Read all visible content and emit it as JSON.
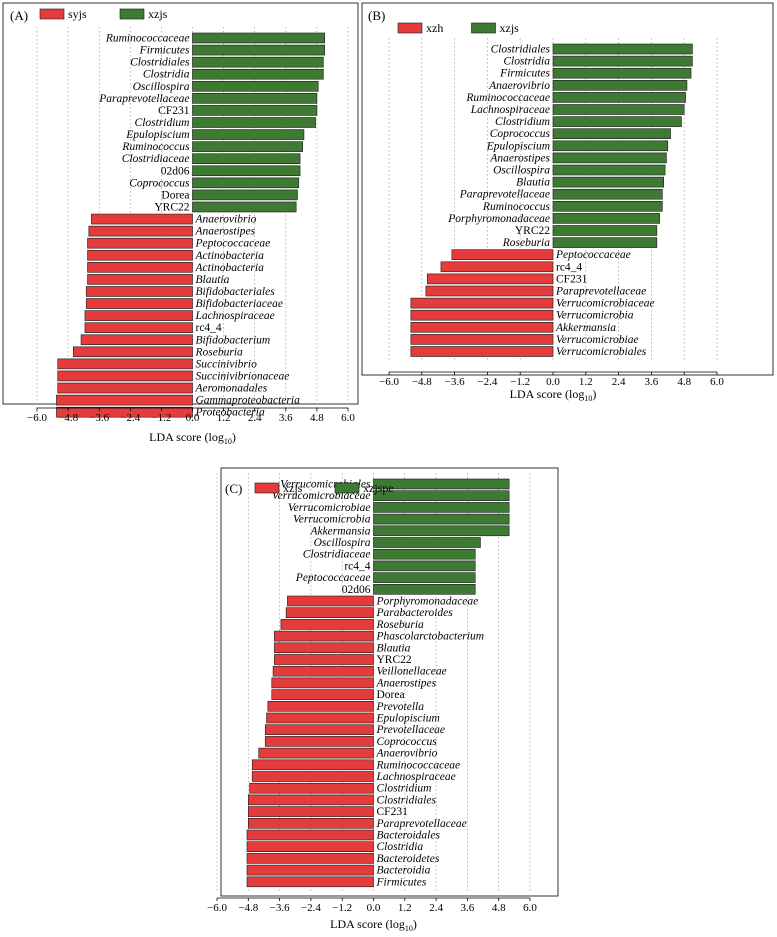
{
  "colors": {
    "negative": "#e43c3c",
    "positive": "#3e7a33",
    "grid": "#999999",
    "axis": "#000000"
  },
  "chart_data": [
    {
      "type": "bar",
      "orientation": "horizontal",
      "panel_label": "(A)",
      "xlabel": "LDA score (log",
      "xlabel_sub": "10",
      "xlabel_end": ")",
      "xlim": [
        -6.0,
        6.0
      ],
      "xticks": [
        -6.0,
        -4.8,
        -3.6,
        -2.4,
        -1.2,
        0.0,
        1.2,
        2.4,
        3.6,
        4.8,
        6.0
      ],
      "xtick_labels": [
        "−6.0",
        "−4.8",
        "−3.6",
        "−2.4",
        "−1.2",
        "0.0",
        "1.2",
        "2.4",
        "3.6",
        "4.8",
        "6.0"
      ],
      "grid": "vertical dotted",
      "legend_position": "top-left",
      "series": [
        {
          "name": "syjs",
          "color": "#e43c3c"
        },
        {
          "name": "xzjs",
          "color": "#3e7a33"
        }
      ],
      "bars": [
        {
          "label": "Ruminococcaceae",
          "value": 5.1,
          "italic": true
        },
        {
          "label": "Firmicutes",
          "value": 5.1,
          "italic": true
        },
        {
          "label": "Clostridiales",
          "value": 5.05,
          "italic": true
        },
        {
          "label": "Clostridia",
          "value": 5.05,
          "italic": true
        },
        {
          "label": "Oscillospira",
          "value": 4.85,
          "italic": true
        },
        {
          "label": "Paraprevotellaceae",
          "value": 4.8,
          "italic": true
        },
        {
          "label": "CF231",
          "value": 4.8,
          "italic": false
        },
        {
          "label": "Clostridium",
          "value": 4.75,
          "italic": true
        },
        {
          "label": "Epulopiscium",
          "value": 4.3,
          "italic": true
        },
        {
          "label": "Ruminococcus",
          "value": 4.25,
          "italic": true
        },
        {
          "label": "Clostridiaceae",
          "value": 4.15,
          "italic": true
        },
        {
          "label": "02d06",
          "value": 4.15,
          "italic": false
        },
        {
          "label": "Coprococcus",
          "value": 4.1,
          "italic": true
        },
        {
          "label": "Dorea",
          "value": 4.05,
          "italic": false
        },
        {
          "label": "YRC22",
          "value": 4.0,
          "italic": false
        },
        {
          "label": "Anaerovibrio",
          "value": -3.9,
          "italic": true
        },
        {
          "label": "Anaerostipes",
          "value": -4.0,
          "italic": true
        },
        {
          "label": "Peptococcaceae",
          "value": -4.05,
          "italic": true
        },
        {
          "label": "Actinobacteria",
          "value": -4.05,
          "italic": true
        },
        {
          "label": "Actinobacteria",
          "value": -4.05,
          "italic": true
        },
        {
          "label": "Blautia",
          "value": -4.05,
          "italic": true
        },
        {
          "label": "Bifidobacteriales",
          "value": -4.1,
          "italic": true
        },
        {
          "label": "Bifidobacteriaceae",
          "value": -4.1,
          "italic": true
        },
        {
          "label": "Lachnospiraceae",
          "value": -4.15,
          "italic": true
        },
        {
          "label": "rc4_4",
          "value": -4.15,
          "italic": false
        },
        {
          "label": "Bifidobacterium",
          "value": -4.3,
          "italic": true
        },
        {
          "label": "Roseburia",
          "value": -4.6,
          "italic": true
        },
        {
          "label": "Succinivibrio",
          "value": -5.2,
          "italic": true
        },
        {
          "label": "Succinivibrionaceae",
          "value": -5.2,
          "italic": true
        },
        {
          "label": "Aeromonadales",
          "value": -5.2,
          "italic": true
        },
        {
          "label": "Gammaproteobacteria",
          "value": -5.25,
          "italic": true
        },
        {
          "label": "Proteobacteria",
          "value": -5.25,
          "italic": true
        }
      ]
    },
    {
      "type": "bar",
      "orientation": "horizontal",
      "panel_label": "(B)",
      "xlabel": "LDA score (log",
      "xlabel_sub": "10",
      "xlabel_end": ")",
      "xlim": [
        -6.0,
        6.0
      ],
      "xticks": [
        -6.0,
        -4.8,
        -3.6,
        -2.4,
        -1.2,
        0.0,
        1.2,
        2.4,
        3.6,
        4.8,
        6.0
      ],
      "xtick_labels": [
        "−6.0",
        "−4.8",
        "−3.6",
        "−2.4",
        "−1.2",
        "0.0",
        "1.2",
        "2.4",
        "3.6",
        "4.8",
        "6.0"
      ],
      "grid": "vertical dotted",
      "legend_position": "top-left",
      "series": [
        {
          "name": "xzh",
          "color": "#e43c3c"
        },
        {
          "name": "xzjs",
          "color": "#3e7a33"
        }
      ],
      "bars": [
        {
          "label": "Clostridiales",
          "value": 5.1,
          "italic": true
        },
        {
          "label": "Clostridia",
          "value": 5.1,
          "italic": true
        },
        {
          "label": "Firmicutes",
          "value": 5.05,
          "italic": true
        },
        {
          "label": "Anaerovibrio",
          "value": 4.9,
          "italic": true
        },
        {
          "label": "Ruminococcaceae",
          "value": 4.85,
          "italic": true
        },
        {
          "label": "Lachnospiraceae",
          "value": 4.8,
          "italic": true
        },
        {
          "label": "Clostridium",
          "value": 4.7,
          "italic": true
        },
        {
          "label": "Coprococcus",
          "value": 4.3,
          "italic": true
        },
        {
          "label": "Epulopiscium",
          "value": 4.2,
          "italic": true
        },
        {
          "label": "Anaerostipes",
          "value": 4.15,
          "italic": true
        },
        {
          "label": "Oscillospira",
          "value": 4.1,
          "italic": true
        },
        {
          "label": "Blautia",
          "value": 4.05,
          "italic": true
        },
        {
          "label": "Paraprevotellaceae",
          "value": 4.0,
          "italic": true
        },
        {
          "label": "Ruminococcus",
          "value": 4.0,
          "italic": true
        },
        {
          "label": "Porphyromonadaceae",
          "value": 3.9,
          "italic": true
        },
        {
          "label": "YRC22",
          "value": 3.8,
          "italic": false
        },
        {
          "label": "Roseburia",
          "value": 3.8,
          "italic": true
        },
        {
          "label": "Peptococcaceae",
          "value": -3.7,
          "italic": true
        },
        {
          "label": "rc4_4",
          "value": -4.1,
          "italic": false
        },
        {
          "label": "CF231",
          "value": -4.6,
          "italic": false
        },
        {
          "label": "Paraprevotellaceae",
          "value": -4.65,
          "italic": true
        },
        {
          "label": "Verrucomicrobiaceae",
          "value": -5.2,
          "italic": true
        },
        {
          "label": "Verrucomicrobia",
          "value": -5.2,
          "italic": true
        },
        {
          "label": "Akkermansia",
          "value": -5.2,
          "italic": true
        },
        {
          "label": "Verrucomicrobiae",
          "value": -5.2,
          "italic": true
        },
        {
          "label": "Verrucomicrobiales",
          "value": -5.2,
          "italic": true
        }
      ]
    },
    {
      "type": "bar",
      "orientation": "horizontal",
      "panel_label": "(C)",
      "xlabel": "LDA score (log",
      "xlabel_sub": "10",
      "xlabel_end": ")",
      "xlim": [
        -6.0,
        6.0
      ],
      "xticks": [
        -6.0,
        -4.8,
        -3.6,
        -2.4,
        -1.2,
        0.0,
        1.2,
        2.4,
        3.6,
        4.8,
        6.0
      ],
      "xtick_labels": [
        "−6.0",
        "−4.8",
        "−3.6",
        "−2.4",
        "−1.2",
        "0.0",
        "1.2",
        "2.4",
        "3.6",
        "4.8",
        "6.0"
      ],
      "grid": "vertical dotted",
      "legend_position": "top-left",
      "series": [
        {
          "name": "xzjs",
          "color": "#e43c3c"
        },
        {
          "name": "xzjspe",
          "color": "#3e7a33"
        }
      ],
      "bars": [
        {
          "label": "Verrucomicrobiales",
          "value": 5.2,
          "italic": true
        },
        {
          "label": "Verrucomicrobiaceae",
          "value": 5.2,
          "italic": true
        },
        {
          "label": "Verrucomicrobiae",
          "value": 5.2,
          "italic": true
        },
        {
          "label": "Verrucomicrobia",
          "value": 5.2,
          "italic": true
        },
        {
          "label": "Akkermansia",
          "value": 5.2,
          "italic": true
        },
        {
          "label": "Oscillospira",
          "value": 4.1,
          "italic": true
        },
        {
          "label": "Clostridiaceae",
          "value": 3.9,
          "italic": true
        },
        {
          "label": "rc4_4",
          "value": 3.9,
          "italic": false
        },
        {
          "label": "Peptococcaceae",
          "value": 3.9,
          "italic": true
        },
        {
          "label": "02d06",
          "value": 3.9,
          "italic": false
        },
        {
          "label": "Porphyromonadaceae",
          "value": -3.3,
          "italic": true
        },
        {
          "label": "Parabacteroides",
          "value": -3.35,
          "italic": true
        },
        {
          "label": "Roseburia",
          "value": -3.55,
          "italic": true
        },
        {
          "label": "Phascolarctobacterium",
          "value": -3.8,
          "italic": true
        },
        {
          "label": "Blautia",
          "value": -3.8,
          "italic": true
        },
        {
          "label": "YRC22",
          "value": -3.8,
          "italic": false
        },
        {
          "label": "Veillonellaceae",
          "value": -3.85,
          "italic": true
        },
        {
          "label": "Anaerostipes",
          "value": -3.9,
          "italic": true
        },
        {
          "label": "Dorea",
          "value": -3.9,
          "italic": false
        },
        {
          "label": "Prevotella",
          "value": -4.05,
          "italic": true
        },
        {
          "label": "Epulopiscium",
          "value": -4.1,
          "italic": true
        },
        {
          "label": "Prevotellaceae",
          "value": -4.15,
          "italic": true
        },
        {
          "label": "Coprococcus",
          "value": -4.15,
          "italic": true
        },
        {
          "label": "Anaerovibrio",
          "value": -4.4,
          "italic": true
        },
        {
          "label": "Ruminococcaceae",
          "value": -4.65,
          "italic": true
        },
        {
          "label": "Lachnospiraceae",
          "value": -4.65,
          "italic": true
        },
        {
          "label": "Clostridium",
          "value": -4.75,
          "italic": true
        },
        {
          "label": "Clostridiales",
          "value": -4.8,
          "italic": true
        },
        {
          "label": "CF231",
          "value": -4.8,
          "italic": false
        },
        {
          "label": "Paraprevotellaceae",
          "value": -4.8,
          "italic": true
        },
        {
          "label": "Bacteroidales",
          "value": -4.85,
          "italic": true
        },
        {
          "label": "Clostridia",
          "value": -4.85,
          "italic": true
        },
        {
          "label": "Bacteroidetes",
          "value": -4.85,
          "italic": true
        },
        {
          "label": "Bacteroidia",
          "value": -4.85,
          "italic": true
        },
        {
          "label": "Firmicutes",
          "value": -4.85,
          "italic": true
        }
      ]
    }
  ]
}
